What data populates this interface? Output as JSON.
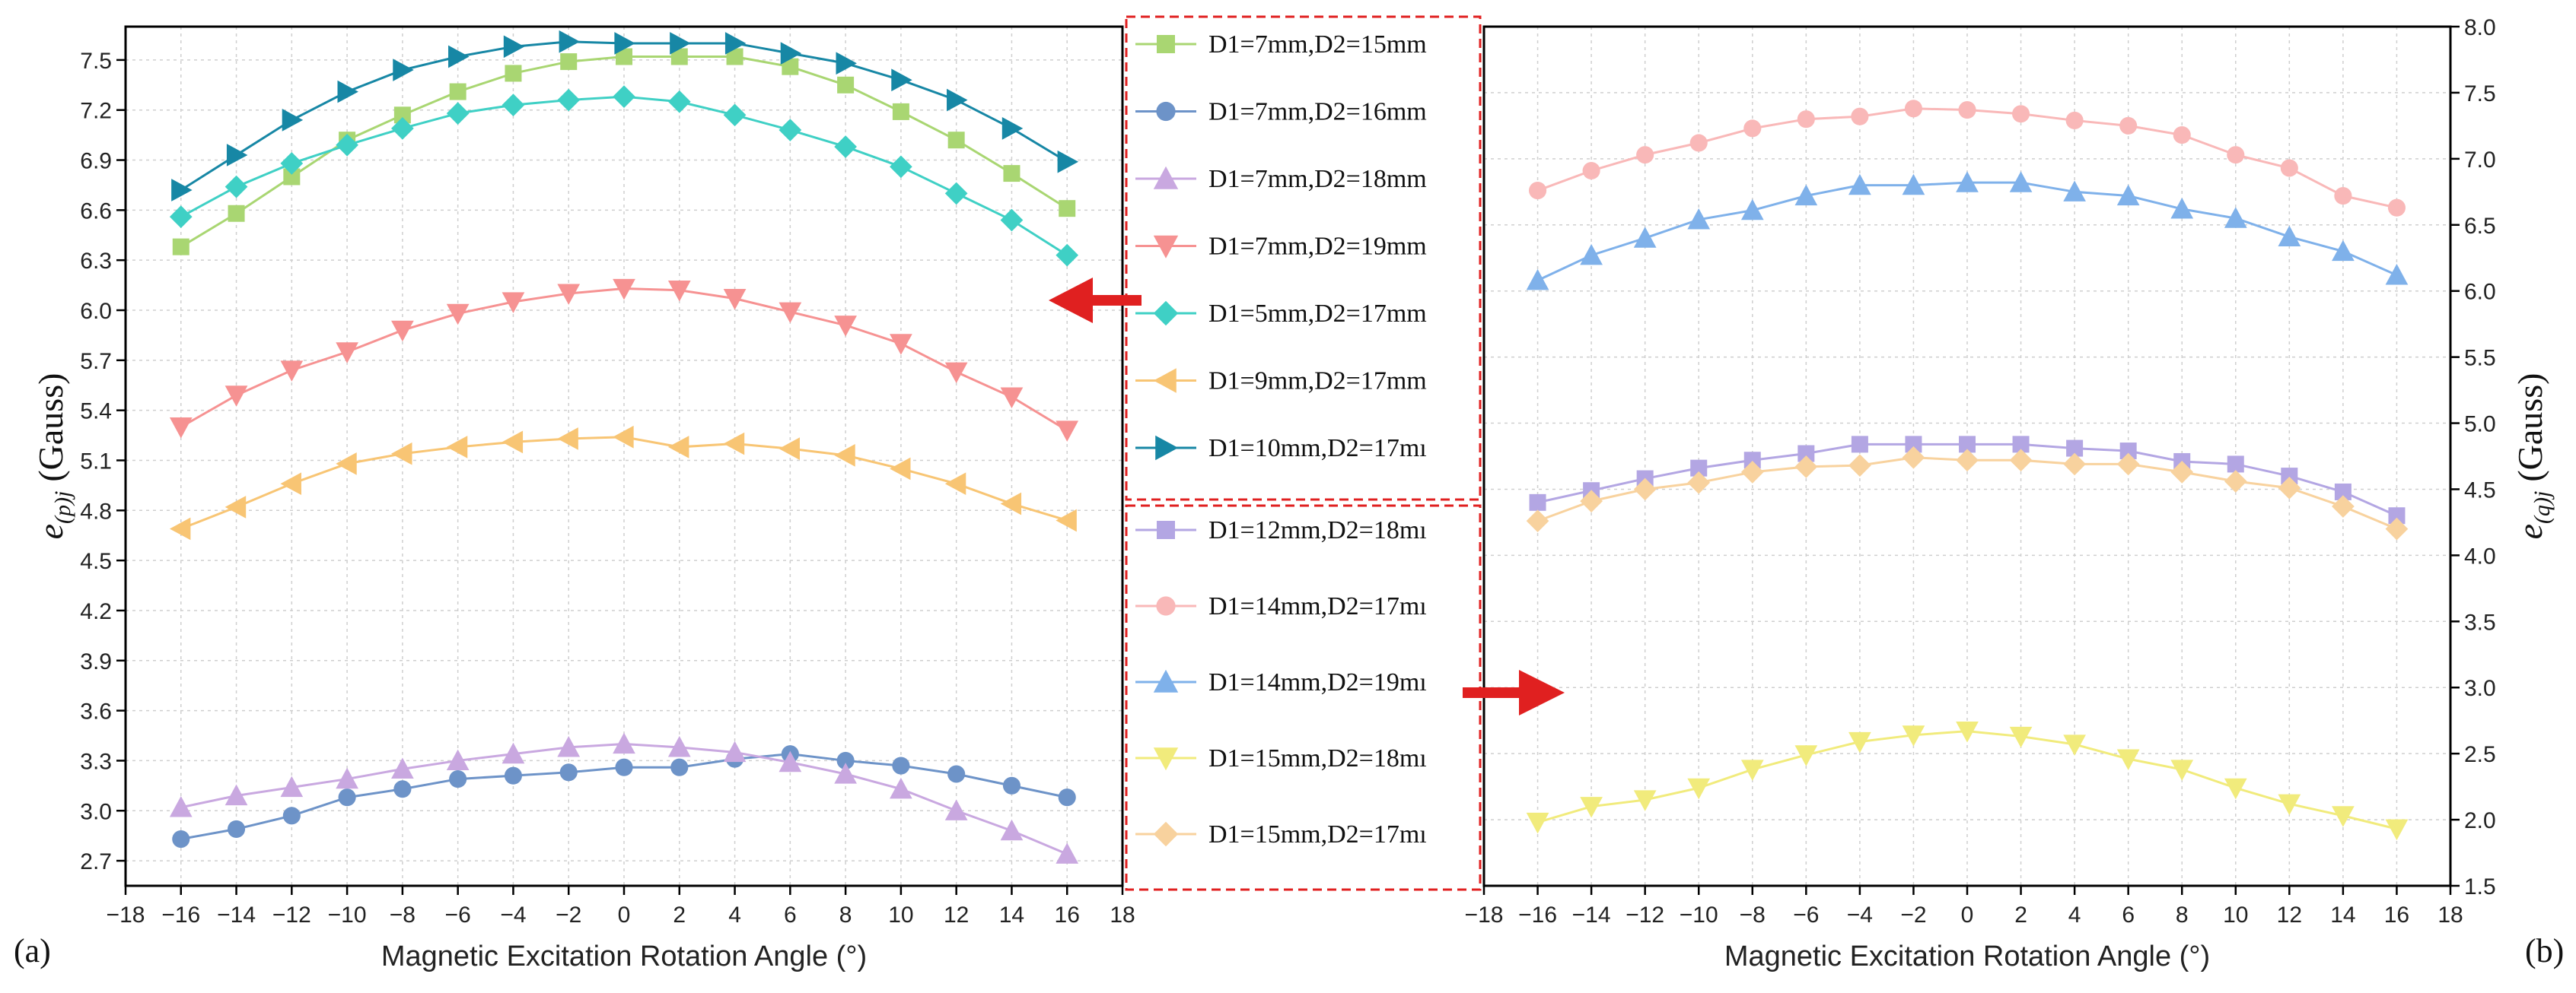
{
  "chart_data": [
    {
      "type": "line",
      "panel_label": "(a)",
      "xlabel": "Magnetic Excitation Rotation Angle (°)",
      "ylabel": "e_{(p)j} (Gauss)",
      "ylabel_parts": {
        "sym": "e",
        "sub": "(p)j",
        "unit": "(Gauss)"
      },
      "xlim": [
        -18,
        18
      ],
      "ylim": [
        2.55,
        7.7
      ],
      "xticks": [
        -18,
        -16,
        -14,
        -12,
        -10,
        -8,
        -6,
        -4,
        -2,
        0,
        2,
        4,
        6,
        8,
        10,
        12,
        14,
        16,
        18
      ],
      "xtick_labels": [
        "−18",
        "−16",
        "−14",
        "−12",
        "−10",
        "−8",
        "−6",
        "−4",
        "−2",
        "0",
        "2",
        "4",
        "6",
        "8",
        "10",
        "12",
        "14",
        "16",
        "18"
      ],
      "yticks": [
        2.7,
        3.0,
        3.3,
        3.6,
        3.9,
        4.2,
        4.5,
        4.8,
        5.1,
        5.4,
        5.7,
        6.0,
        6.3,
        6.6,
        6.9,
        7.2,
        7.5
      ],
      "ytick_labels": [
        "2.7",
        "3.0",
        "3.3",
        "3.6",
        "3.9",
        "4.2",
        "4.5",
        "4.8",
        "5.1",
        "5.4",
        "5.7",
        "6.0",
        "6.3",
        "6.6",
        "6.9",
        "7.2",
        "7.5"
      ],
      "grid": true,
      "x": [
        -16,
        -14,
        -12,
        -10,
        -8,
        -6,
        -4,
        -2,
        0,
        2,
        4,
        6,
        8,
        10,
        12,
        14,
        16
      ],
      "series": [
        {
          "name": "D1=7mm,D2=15mm",
          "color": "#a9d672",
          "marker": "square",
          "values": [
            6.38,
            6.58,
            6.8,
            7.02,
            7.17,
            7.31,
            7.42,
            7.49,
            7.52,
            7.52,
            7.52,
            7.46,
            7.35,
            7.19,
            7.02,
            6.82,
            6.61
          ]
        },
        {
          "name": "D1=7mm,D2=16mm",
          "color": "#6d93c8",
          "marker": "circle",
          "values": [
            2.83,
            2.89,
            2.97,
            3.08,
            3.13,
            3.19,
            3.21,
            3.23,
            3.26,
            3.26,
            3.31,
            3.34,
            3.3,
            3.27,
            3.22,
            3.15,
            3.08
          ]
        },
        {
          "name": "D1=7mm,D2=18mm",
          "color": "#c9a8e0",
          "marker": "triangle-up",
          "values": [
            3.02,
            3.09,
            3.14,
            3.19,
            3.25,
            3.3,
            3.34,
            3.38,
            3.4,
            3.38,
            3.35,
            3.29,
            3.22,
            3.13,
            3.0,
            2.88,
            2.74
          ]
        },
        {
          "name": "D1=7mm,D2=19mm",
          "color": "#f69292",
          "marker": "triangle-down",
          "values": [
            5.3,
            5.49,
            5.64,
            5.75,
            5.88,
            5.98,
            6.05,
            6.1,
            6.13,
            6.12,
            6.07,
            5.99,
            5.91,
            5.8,
            5.63,
            5.48,
            5.28
          ]
        },
        {
          "name": "D1=5mm,D2=17mm",
          "color": "#3fd0c5",
          "marker": "diamond",
          "values": [
            6.56,
            6.74,
            6.88,
            6.99,
            7.09,
            7.18,
            7.23,
            7.26,
            7.28,
            7.25,
            7.17,
            7.08,
            6.98,
            6.86,
            6.7,
            6.54,
            6.33
          ]
        },
        {
          "name": "D1=9mm,D2=17mm",
          "color": "#f8c574",
          "marker": "triangle-left",
          "values": [
            4.69,
            4.82,
            4.96,
            5.08,
            5.14,
            5.18,
            5.21,
            5.23,
            5.24,
            5.18,
            5.2,
            5.17,
            5.13,
            5.05,
            4.96,
            4.84,
            4.74
          ]
        },
        {
          "name": "D1=10mm,D2=17mm",
          "legend_text": "D1=10mm,D2=17mı",
          "color": "#1787a5",
          "marker": "triangle-right",
          "values": [
            6.72,
            6.93,
            7.14,
            7.31,
            7.44,
            7.52,
            7.58,
            7.61,
            7.6,
            7.6,
            7.6,
            7.54,
            7.48,
            7.38,
            7.26,
            7.09,
            6.89
          ]
        }
      ]
    },
    {
      "type": "line",
      "panel_label": "(b)",
      "xlabel": "Magnetic Excitation Rotation Angle (°)",
      "ylabel": "e_{(q)j} (Gauss)",
      "ylabel_parts": {
        "sym": "e",
        "sub": "(q)j",
        "unit": "(Gauss)"
      },
      "xlim": [
        -18,
        18
      ],
      "ylim": [
        1.5,
        8.0
      ],
      "xticks": [
        -18,
        -16,
        -14,
        -12,
        -10,
        -8,
        -6,
        -4,
        -2,
        0,
        2,
        4,
        6,
        8,
        10,
        12,
        14,
        16,
        18
      ],
      "xtick_labels": [
        "−18",
        "−16",
        "−14",
        "−12",
        "−10",
        "−8",
        "−6",
        "−4",
        "−2",
        "0",
        "2",
        "4",
        "6",
        "8",
        "10",
        "12",
        "14",
        "16",
        "18"
      ],
      "yticks": [
        1.5,
        2.0,
        2.5,
        3.0,
        3.5,
        4.0,
        4.5,
        5.0,
        5.5,
        6.0,
        6.5,
        7.0,
        7.5,
        8.0
      ],
      "ytick_labels": [
        "1.5",
        "2.0",
        "2.5",
        "3.0",
        "3.5",
        "4.0",
        "4.5",
        "5.0",
        "5.5",
        "6.0",
        "6.5",
        "7.0",
        "7.5",
        "8.0"
      ],
      "grid": true,
      "x": [
        -16,
        -14,
        -12,
        -10,
        -8,
        -6,
        -4,
        -2,
        0,
        2,
        4,
        6,
        8,
        10,
        12,
        14,
        16
      ],
      "series": [
        {
          "name": "D1=12mm,D2=18mm",
          "legend_text": "D1=12mm,D2=18mı",
          "color": "#b3a6e3",
          "marker": "square",
          "values": [
            4.4,
            4.49,
            4.58,
            4.66,
            4.72,
            4.77,
            4.84,
            4.84,
            4.84,
            4.84,
            4.81,
            4.79,
            4.71,
            4.69,
            4.6,
            4.48,
            4.3
          ]
        },
        {
          "name": "D1=14mm,D2=17mm",
          "legend_text": "D1=14mm,D2=17mı",
          "color": "#f9b8b8",
          "marker": "circle",
          "values": [
            6.76,
            6.91,
            7.03,
            7.12,
            7.23,
            7.3,
            7.32,
            7.38,
            7.37,
            7.34,
            7.29,
            7.25,
            7.18,
            7.03,
            6.93,
            6.72,
            6.63
          ]
        },
        {
          "name": "D1=14mm,D2=19mm",
          "legend_text": "D1=14mm,D2=19mı",
          "color": "#7fb1ea",
          "marker": "triangle-up",
          "values": [
            6.08,
            6.27,
            6.4,
            6.54,
            6.61,
            6.72,
            6.8,
            6.8,
            6.82,
            6.82,
            6.75,
            6.72,
            6.62,
            6.55,
            6.41,
            6.3,
            6.12
          ]
        },
        {
          "name": "D1=15mm,D2=18mm",
          "legend_text": "D1=15mm,D2=18mı",
          "color": "#f1eb7c",
          "marker": "triangle-down",
          "values": [
            1.98,
            2.1,
            2.15,
            2.24,
            2.38,
            2.49,
            2.59,
            2.64,
            2.67,
            2.63,
            2.57,
            2.46,
            2.38,
            2.24,
            2.12,
            2.03,
            1.93
          ]
        },
        {
          "name": "D1=15mm,D2=17mm",
          "legend_text": "D1=15mm,D2=17mı",
          "color": "#f8d29e",
          "marker": "diamond",
          "values": [
            4.26,
            4.41,
            4.5,
            4.55,
            4.63,
            4.67,
            4.68,
            4.74,
            4.72,
            4.72,
            4.69,
            4.69,
            4.63,
            4.56,
            4.51,
            4.37,
            4.2
          ]
        }
      ]
    }
  ],
  "legend_left": [
    "D1=7mm,D2=15mm",
    "D1=7mm,D2=16mm",
    "D1=7mm,D2=18mm",
    "D1=7mm,D2=19mm",
    "D1=5mm,D2=17mm",
    "D1=9mm,D2=17mm",
    "D1=10mm,D2=17mı"
  ],
  "legend_right": [
    "D1=12mm,D2=18mı",
    "D1=14mm,D2=17mı",
    "D1=14mm,D2=19mı",
    "D1=15mm,D2=18mı",
    "D1=15mm,D2=17mı"
  ],
  "colors": {
    "arrow": "#e02020",
    "legend_border": "#e02020",
    "grid": "#cfcfcf",
    "axis": "#000000"
  },
  "icons": {
    "left_arrow": "arrow-left-icon",
    "right_arrow": "arrow-right-icon"
  }
}
